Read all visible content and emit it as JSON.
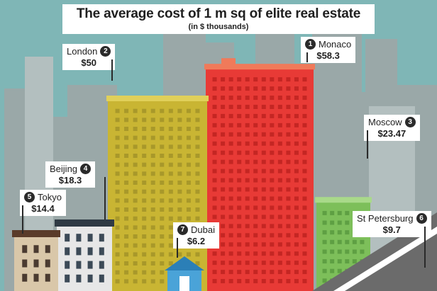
{
  "chart_data": {
    "type": "bar",
    "title": "The average cost of 1 m sq of elite real estate",
    "subtitle": "(in $ thousands)",
    "categories": [
      "Monaco",
      "London",
      "Moscow",
      "Beijing",
      "Tokyo",
      "St Petersburg",
      "Dubai"
    ],
    "ranks": [
      "1",
      "2",
      "3",
      "4",
      "5",
      "6",
      "7"
    ],
    "values": [
      58.3,
      50,
      23.47,
      18.3,
      14.4,
      9.7,
      6.2
    ],
    "value_labels": [
      "$58.3",
      "$50",
      "$23.47",
      "$18.3",
      "$14.4",
      "$9.7",
      "$6.2"
    ],
    "colors": {
      "sky": "#7fb6b6",
      "background_buildings": "#9aa8a8",
      "monaco_tower": "#e83a36",
      "london_tower": "#c9b533",
      "moscow_tower": "#7dbf5a",
      "label_bg": "#ffffff",
      "badge": "#2a2a2a"
    }
  }
}
